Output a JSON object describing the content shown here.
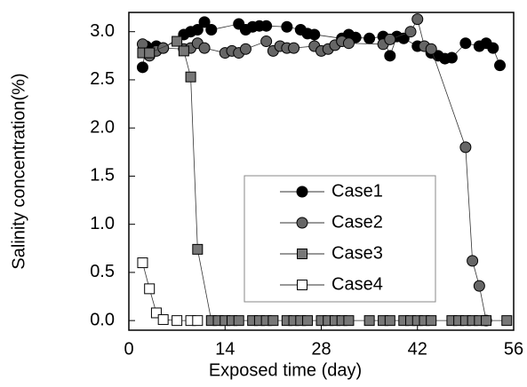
{
  "chart_data": {
    "type": "scatter-line",
    "xlabel": "Exposed time (day)",
    "ylabel": "Salinity concentration(%)",
    "xlim": [
      0,
      56
    ],
    "ylim": [
      -0.1,
      3.2
    ],
    "xticks": [
      0,
      14,
      28,
      42,
      56
    ],
    "yticks": [
      {
        "value": 0,
        "label": "0.0"
      },
      0.5,
      {
        "value": 1,
        "label": "1.0"
      },
      1.5,
      {
        "value": 2,
        "label": "2.0"
      },
      2.5,
      {
        "value": 3,
        "label": "3.0"
      }
    ],
    "grid": false,
    "legend": "center",
    "series": [
      {
        "name": "Case1",
        "color": "#000000",
        "marker": "circle",
        "x": [
          2,
          2.5,
          3,
          4,
          5,
          8,
          9,
          10,
          11,
          12,
          16,
          17,
          18,
          19,
          20,
          23,
          25,
          26,
          27,
          31,
          32,
          33,
          35,
          37,
          38,
          39,
          40,
          42,
          44,
          45,
          46,
          47,
          49,
          51,
          52,
          53,
          54
        ],
        "values": [
          2.63,
          2.85,
          2.78,
          2.85,
          2.83,
          2.97,
          3.0,
          3.02,
          3.1,
          3.02,
          3.08,
          3.02,
          3.05,
          3.06,
          3.06,
          3.05,
          3.02,
          2.98,
          2.97,
          2.93,
          2.97,
          2.94,
          2.93,
          2.95,
          2.75,
          2.95,
          2.93,
          2.85,
          2.78,
          2.75,
          2.72,
          2.73,
          2.88,
          2.85,
          2.88,
          2.83,
          2.65
        ]
      },
      {
        "name": "Case2",
        "color": "#666666",
        "marker": "circle",
        "x": [
          2,
          3,
          4,
          5,
          8,
          9,
          10,
          11,
          14,
          15,
          16,
          17,
          20,
          21,
          22,
          23,
          24,
          27,
          28,
          29,
          30,
          31,
          32,
          37,
          38,
          41,
          42,
          43,
          44,
          49,
          50,
          51,
          52
        ],
        "values": [
          2.87,
          2.75,
          2.8,
          2.83,
          2.82,
          2.83,
          2.88,
          2.83,
          2.78,
          2.8,
          2.78,
          2.82,
          2.9,
          2.8,
          2.85,
          2.83,
          2.83,
          2.85,
          2.8,
          2.82,
          2.86,
          2.9,
          2.88,
          2.87,
          2.92,
          3.0,
          3.13,
          2.85,
          2.82,
          1.8,
          0.62,
          0.36,
          0.0
        ]
      },
      {
        "name": "Case3",
        "color": "#777777",
        "marker": "square",
        "x": [
          2,
          3,
          7,
          8,
          9,
          10,
          12,
          13,
          14,
          15,
          16,
          18,
          19,
          20,
          21,
          23,
          24,
          25,
          26,
          28,
          29,
          30,
          31,
          32,
          35,
          37,
          38,
          40,
          41,
          42,
          43,
          44,
          47,
          48,
          49,
          50,
          51,
          52,
          55
        ],
        "values": [
          2.78,
          2.78,
          2.9,
          2.8,
          2.53,
          0.74,
          0,
          0,
          0,
          0,
          0,
          0,
          0,
          0,
          0,
          0,
          0,
          0,
          0,
          0,
          0,
          0,
          0,
          0,
          0,
          0,
          0,
          0,
          0,
          0,
          0,
          0,
          0,
          0,
          0,
          0,
          0,
          0,
          0
        ]
      },
      {
        "name": "Case4",
        "color": "#ffffff",
        "marker": "square",
        "x": [
          2,
          3,
          4,
          5,
          7,
          9,
          10
        ],
        "values": [
          0.6,
          0.33,
          0.08,
          0.01,
          0,
          0,
          0
        ]
      }
    ]
  }
}
